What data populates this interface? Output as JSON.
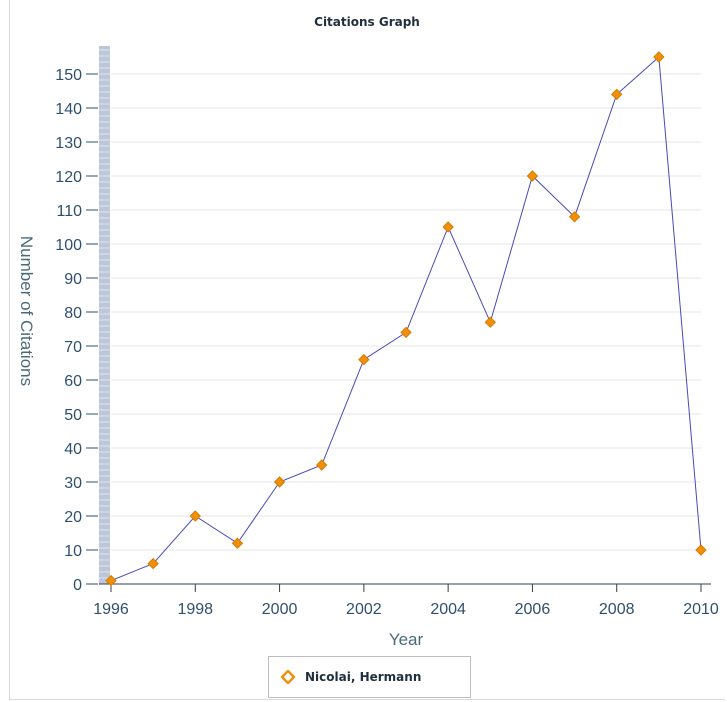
{
  "chart_data": {
    "type": "line",
    "title": "Citations Graph",
    "xlabel": "Year",
    "ylabel": "Number of Citations",
    "x": [
      1996,
      1997,
      1998,
      1999,
      2000,
      2001,
      2002,
      2003,
      2004,
      2005,
      2006,
      2007,
      2008,
      2009,
      2010
    ],
    "series": [
      {
        "name": "Nicolai, Hermann",
        "values": [
          1,
          6,
          20,
          12,
          30,
          35,
          66,
          74,
          105,
          77,
          120,
          108,
          144,
          155,
          10
        ]
      }
    ],
    "xticks": [
      "1996",
      "1998",
      "2000",
      "2002",
      "2004",
      "2006",
      "2008",
      "2010"
    ],
    "yticks": [
      "0",
      "10",
      "20",
      "30",
      "40",
      "50",
      "60",
      "70",
      "80",
      "90",
      "100",
      "110",
      "120",
      "130",
      "140",
      "150"
    ],
    "xlim": [
      1996,
      2010
    ],
    "ylim": [
      0,
      158
    ],
    "grid": true,
    "legend_position": "bottom",
    "colors": {
      "line": "#4a4ab8",
      "marker": "#f0900a",
      "grid": "#e4e4e4",
      "axis_band": "#bcc8d8"
    }
  }
}
